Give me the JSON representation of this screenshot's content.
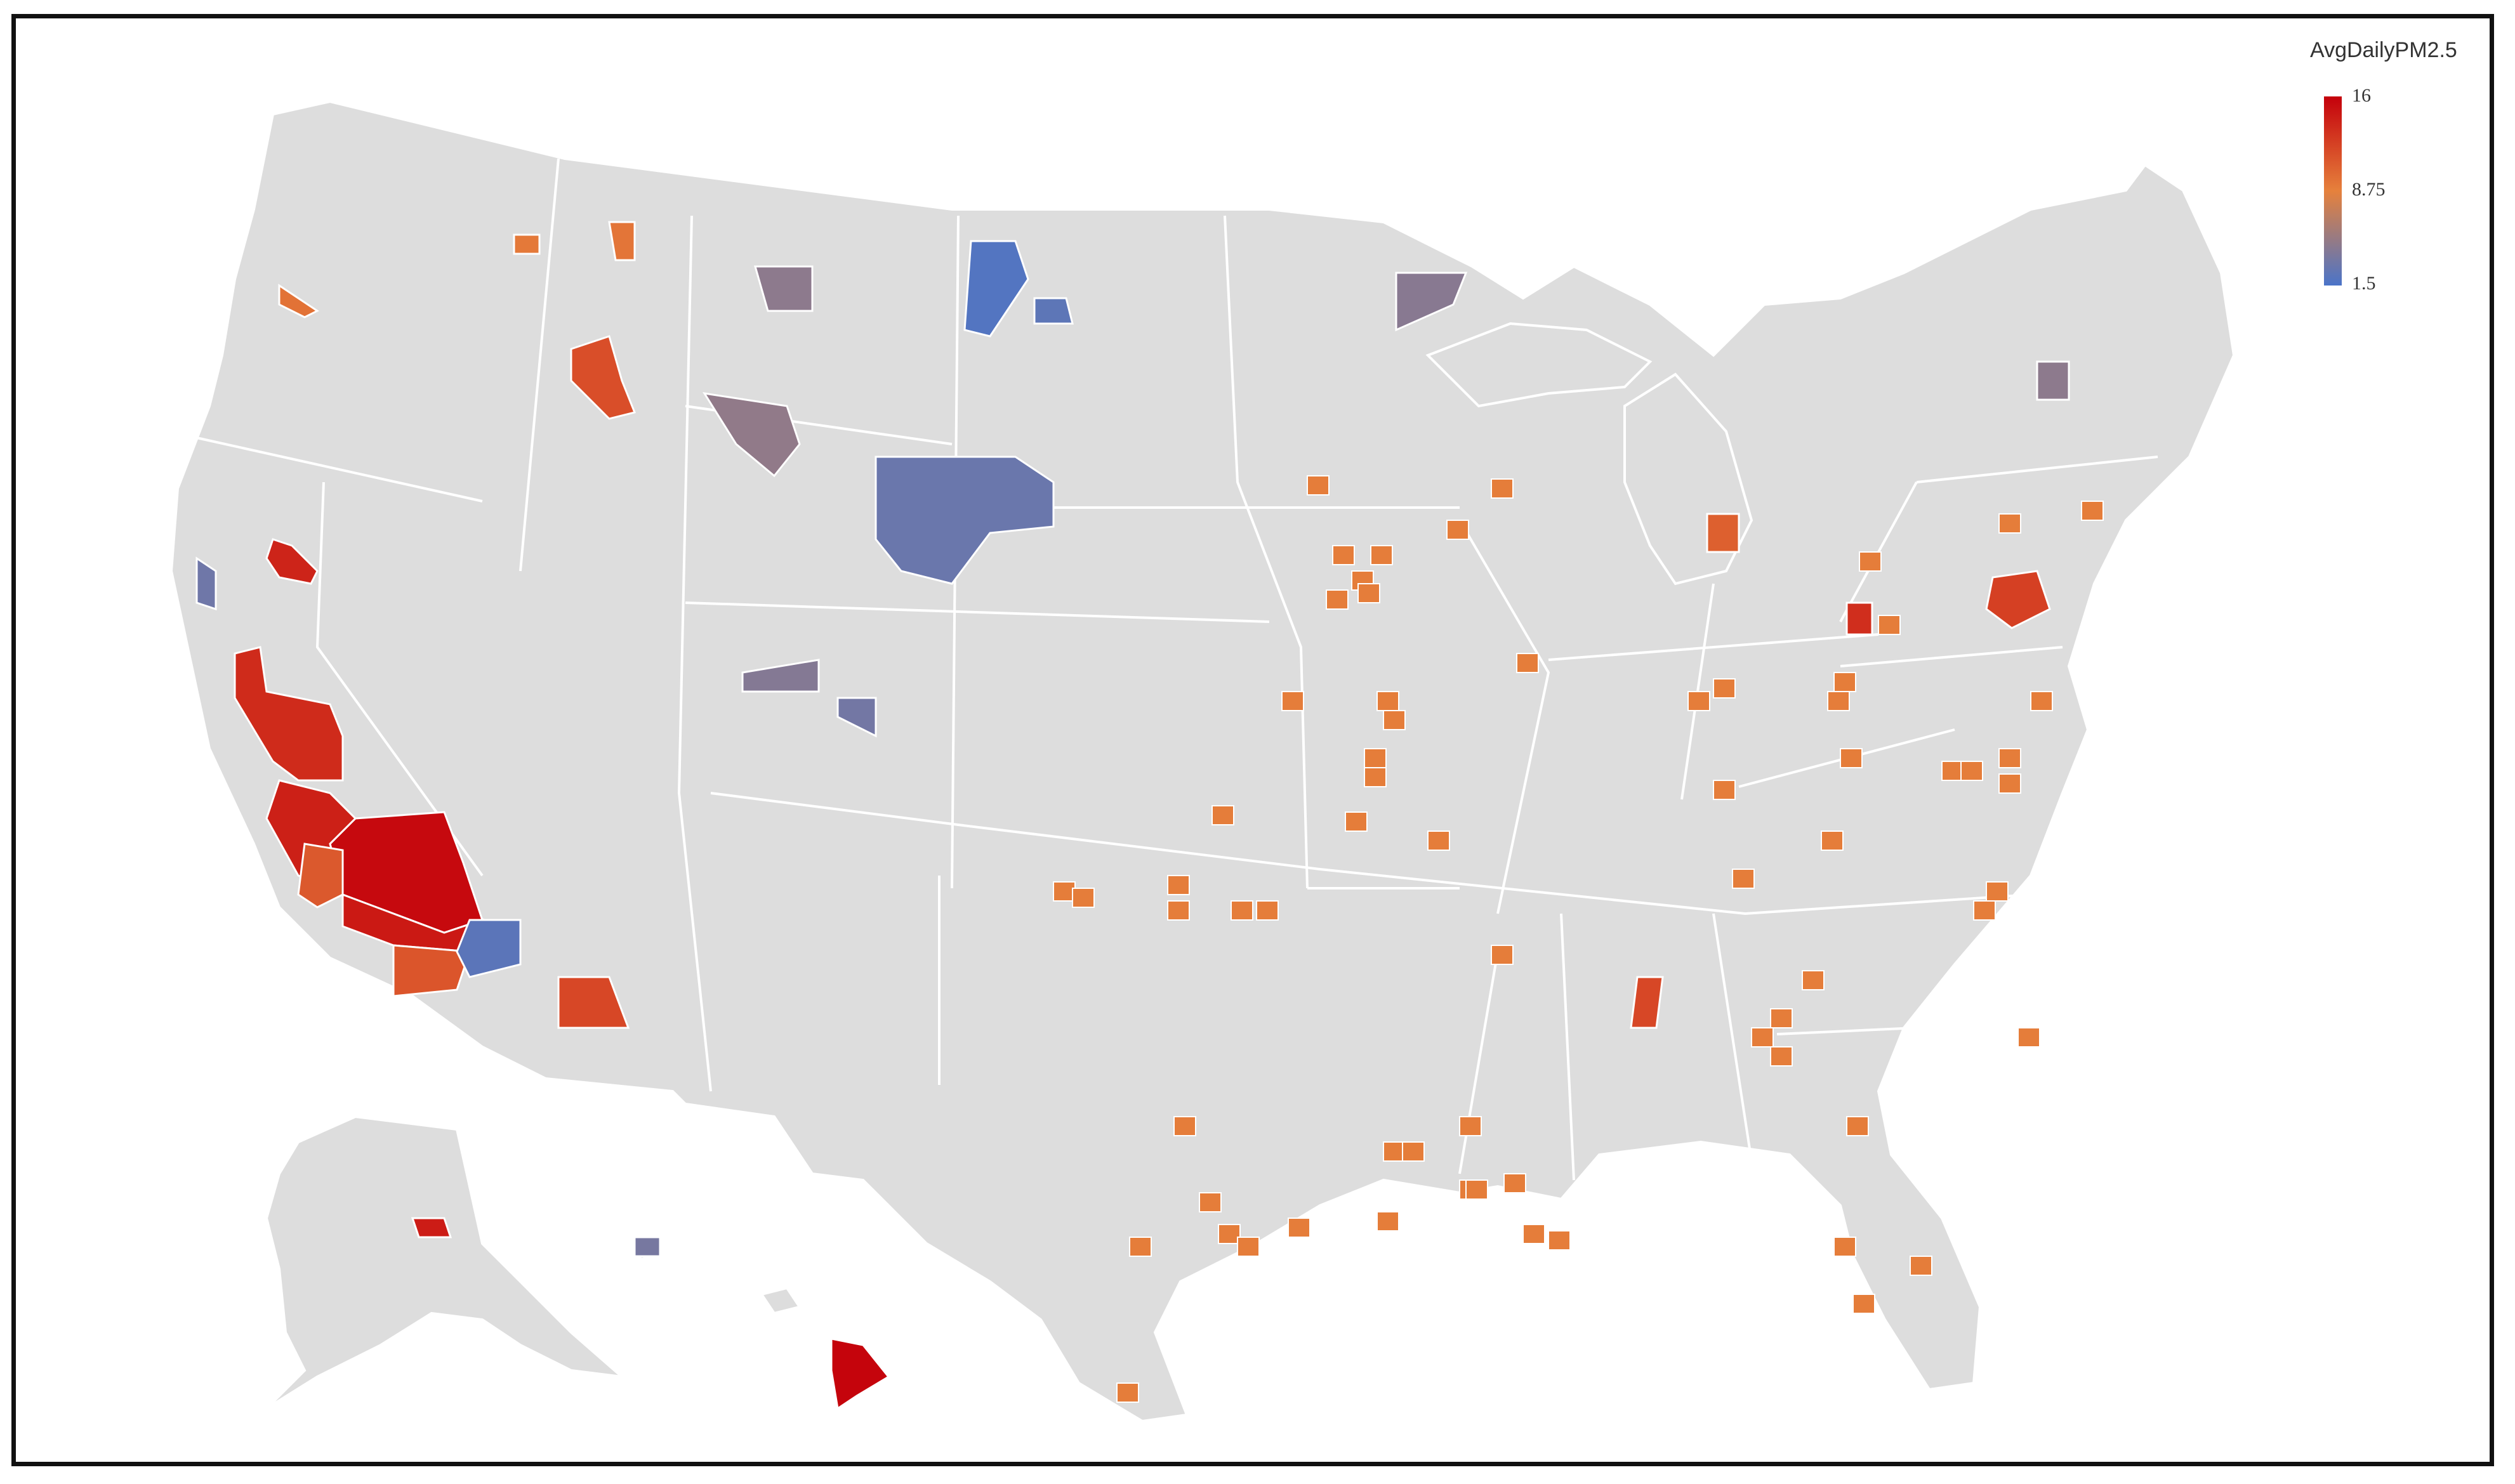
{
  "legend": {
    "title": "AvgDailyPM2.5",
    "max_label": "16",
    "mid_label": "8.75",
    "min_label": "1.5",
    "scale": {
      "min": 1.5,
      "mid": 8.75,
      "max": 16
    },
    "colors": {
      "low": "#4a74c9",
      "mid": "#e6813c",
      "high": "#c4000b"
    }
  },
  "map": {
    "base_fill": "#dddddd",
    "border_color": "#ffffff",
    "county_values": {
      "ca_inland_big": 15.5,
      "ca_south": 14.6,
      "ca_central": 14.2,
      "ca_north": 13.6,
      "ca_coast_south": 11.0,
      "ca_coast": 11.2,
      "ca_west": 3.2,
      "nv_northwest": 14.0,
      "az_west": 2.3,
      "az_central": 12.0,
      "id_southwest": 11.6,
      "wa_east": 9.6,
      "id_north_a": 9.2,
      "id_north_b": 9.4,
      "mt_central": 4.6,
      "wy_west": 4.8,
      "wy_east_cluster": 3.0,
      "nd_west": 1.9,
      "nd_east": 2.4,
      "mn_northeast": 4.4,
      "ut_northeast": 4.2,
      "co_northwest": 3.4,
      "ny_north": 4.6,
      "hi_big_island": 15.8,
      "hi_oahu": 3.6,
      "ak_interior": 14.4,
      "midwest_scattered": 9.0,
      "east_scattered": 10.0,
      "south_scattered": 9.0,
      "pa_cluster": 12.4,
      "oh_east": 13.4,
      "al_north": 12.0,
      "mi_southeast": 10.6
    }
  }
}
